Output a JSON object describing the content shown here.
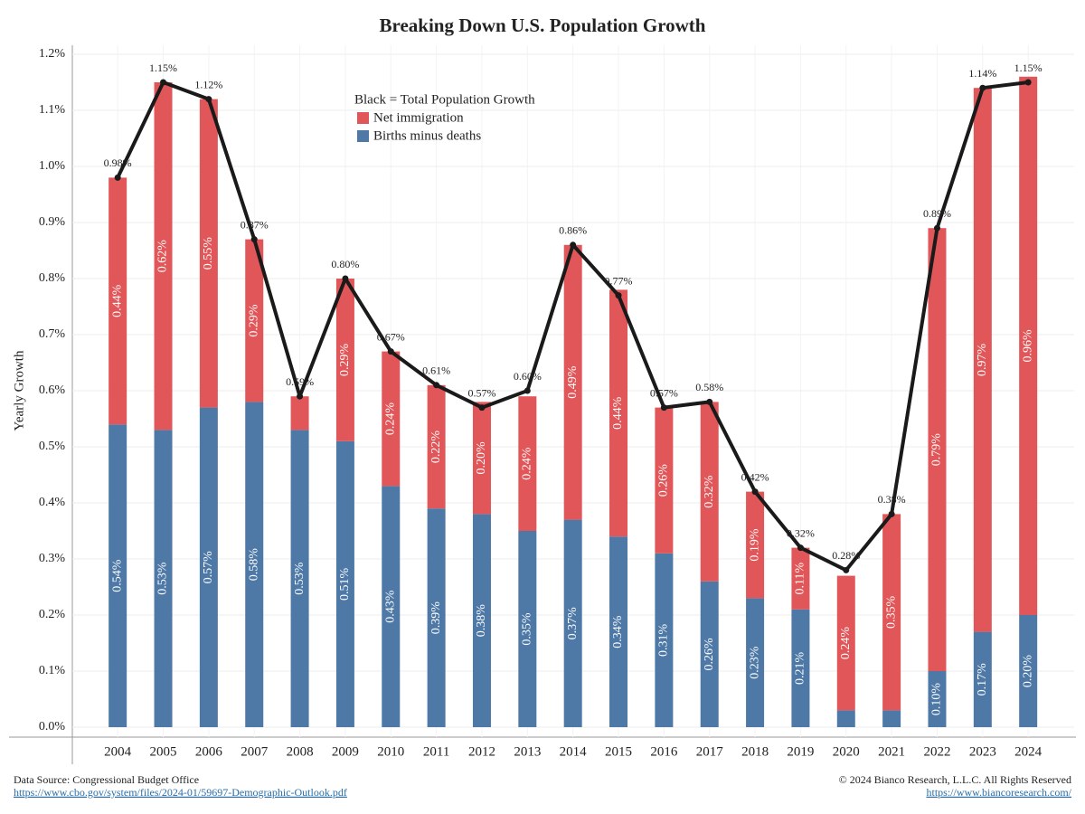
{
  "chart_data": {
    "type": "bar",
    "stacked": true,
    "title": "Breaking Down U.S. Population Growth",
    "y_label": "Yearly Growth",
    "categories": [
      "2004",
      "2005",
      "2006",
      "2007",
      "2008",
      "2009",
      "2010",
      "2011",
      "2012",
      "2013",
      "2014",
      "2015",
      "2016",
      "2017",
      "2018",
      "2019",
      "2020",
      "2021",
      "2022",
      "2023",
      "2024"
    ],
    "series": [
      {
        "name": "Births minus deaths",
        "type": "bar",
        "color": "#4e79a7",
        "values": [
          0.54,
          0.53,
          0.57,
          0.58,
          0.53,
          0.51,
          0.43,
          0.39,
          0.38,
          0.35,
          0.37,
          0.34,
          0.31,
          0.26,
          0.23,
          0.21,
          0.03,
          0.03,
          0.1,
          0.17,
          0.2
        ],
        "value_labels": [
          "0.54%",
          "0.53%",
          "0.57%",
          "0.58%",
          "0.53%",
          "0.51%",
          "0.43%",
          "0.39%",
          "0.38%",
          "0.35%",
          "0.37%",
          "0.34%",
          "0.31%",
          "0.26%",
          "0.23%",
          "0.21%",
          null,
          null,
          "0.10%",
          "0.17%",
          "0.20%"
        ]
      },
      {
        "name": "Net immigration",
        "type": "bar",
        "color": "#e15759",
        "values": [
          0.44,
          0.62,
          0.55,
          0.29,
          0.06,
          0.29,
          0.24,
          0.22,
          0.2,
          0.24,
          0.49,
          0.44,
          0.26,
          0.32,
          0.19,
          0.11,
          0.24,
          0.35,
          0.79,
          0.97,
          0.96
        ],
        "value_labels": [
          "0.44%",
          "0.62%",
          "0.55%",
          "0.29%",
          null,
          "0.29%",
          "0.24%",
          "0.22%",
          "0.20%",
          "0.24%",
          "0.49%",
          "0.44%",
          "0.26%",
          "0.32%",
          "0.19%",
          "0.11%",
          "0.24%",
          "0.35%",
          "0.79%",
          "0.97%",
          "0.96%"
        ]
      },
      {
        "name": "Black = Total Population Growth",
        "type": "line",
        "color": "#1a1a1a",
        "values": [
          0.98,
          1.15,
          1.12,
          0.87,
          0.59,
          0.8,
          0.67,
          0.61,
          0.57,
          0.6,
          0.86,
          0.77,
          0.57,
          0.58,
          0.42,
          0.32,
          0.28,
          0.38,
          0.89,
          1.14,
          1.15
        ],
        "value_labels": [
          "0.98%",
          "1.15%",
          "1.12%",
          "0.87%",
          "0.59%",
          "0.80%",
          "0.67%",
          "0.61%",
          "0.57%",
          "0.60%",
          "0.86%",
          "0.77%",
          "0.57%",
          "0.58%",
          "0.42%",
          "0.32%",
          "0.28%",
          "0.38%",
          "0.89%",
          "1.14%",
          "1.15%"
        ]
      }
    ],
    "ylim": [
      0,
      1.2
    ],
    "yticks": [
      {
        "value": 0,
        "label": "0.0%"
      },
      {
        "value": 0.1,
        "label": "0.1%"
      },
      {
        "value": 0.2,
        "label": "0.2%"
      },
      {
        "value": 0.3,
        "label": "0.3%"
      },
      {
        "value": 0.4,
        "label": "0.4%"
      },
      {
        "value": 0.5,
        "label": "0.5%"
      },
      {
        "value": 0.6,
        "label": "0.6%"
      },
      {
        "value": 0.7,
        "label": "0.7%"
      },
      {
        "value": 0.8,
        "label": "0.8%"
      },
      {
        "value": 0.9,
        "label": "0.9%"
      },
      {
        "value": 1.0,
        "label": "1.0%"
      },
      {
        "value": 1.1,
        "label": "1.1%"
      },
      {
        "value": 1.2,
        "label": "1.2%"
      }
    ],
    "grid": true
  },
  "footer": {
    "source": "Data Source: Congressional Budget Office",
    "source_url": "https://www.cbo.gov/system/files/2024-01/59697-Demographic-Outlook.pdf",
    "copyright": "© 2024 Bianco Research, L.L.C. All Rights Reserved",
    "site_url": "https://www.biancoresearch.com/"
  }
}
